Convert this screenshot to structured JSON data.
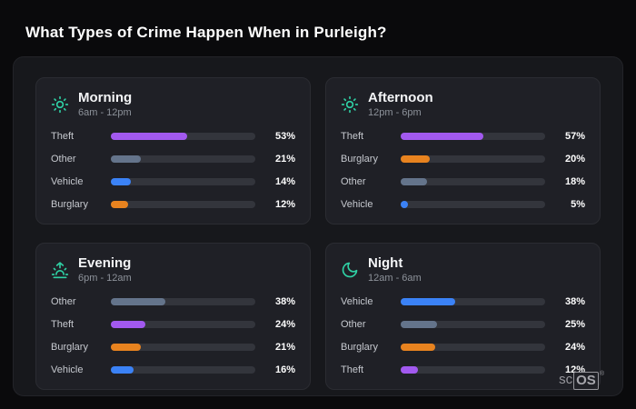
{
  "page": {
    "title": "What Types of Crime Happen When in Purleigh?"
  },
  "brand": {
    "prefix": "sc",
    "suffix": "OS",
    "registered": "®"
  },
  "colors": {
    "theft": "#a259ef",
    "other": "#64748b",
    "vehicle": "#3b82f6",
    "burglary": "#e8831f",
    "icon": "#2fd0a4"
  },
  "chart_data": {
    "type": "bar",
    "title": "What Types of Crime Happen When in Purleigh?",
    "orientation": "horizontal",
    "value_range": [
      0,
      100
    ],
    "groups": [
      {
        "title": "Morning",
        "subtitle": "6am - 12pm",
        "icon": "sun-icon",
        "rows": [
          {
            "label": "Theft",
            "value": 53,
            "pct": "53%",
            "color": "theft"
          },
          {
            "label": "Other",
            "value": 21,
            "pct": "21%",
            "color": "other"
          },
          {
            "label": "Vehicle",
            "value": 14,
            "pct": "14%",
            "color": "vehicle"
          },
          {
            "label": "Burglary",
            "value": 12,
            "pct": "12%",
            "color": "burglary"
          }
        ]
      },
      {
        "title": "Afternoon",
        "subtitle": "12pm - 6pm",
        "icon": "sun-icon",
        "rows": [
          {
            "label": "Theft",
            "value": 57,
            "pct": "57%",
            "color": "theft"
          },
          {
            "label": "Burglary",
            "value": 20,
            "pct": "20%",
            "color": "burglary"
          },
          {
            "label": "Other",
            "value": 18,
            "pct": "18%",
            "color": "other"
          },
          {
            "label": "Vehicle",
            "value": 5,
            "pct": "5%",
            "color": "vehicle"
          }
        ]
      },
      {
        "title": "Evening",
        "subtitle": "6pm - 12am",
        "icon": "sunset-icon",
        "rows": [
          {
            "label": "Other",
            "value": 38,
            "pct": "38%",
            "color": "other"
          },
          {
            "label": "Theft",
            "value": 24,
            "pct": "24%",
            "color": "theft"
          },
          {
            "label": "Burglary",
            "value": 21,
            "pct": "21%",
            "color": "burglary"
          },
          {
            "label": "Vehicle",
            "value": 16,
            "pct": "16%",
            "color": "vehicle"
          }
        ]
      },
      {
        "title": "Night",
        "subtitle": "12am - 6am",
        "icon": "moon-icon",
        "rows": [
          {
            "label": "Vehicle",
            "value": 38,
            "pct": "38%",
            "color": "vehicle"
          },
          {
            "label": "Other",
            "value": 25,
            "pct": "25%",
            "color": "other"
          },
          {
            "label": "Burglary",
            "value": 24,
            "pct": "24%",
            "color": "burglary"
          },
          {
            "label": "Theft",
            "value": 12,
            "pct": "12%",
            "color": "theft"
          }
        ]
      }
    ]
  }
}
